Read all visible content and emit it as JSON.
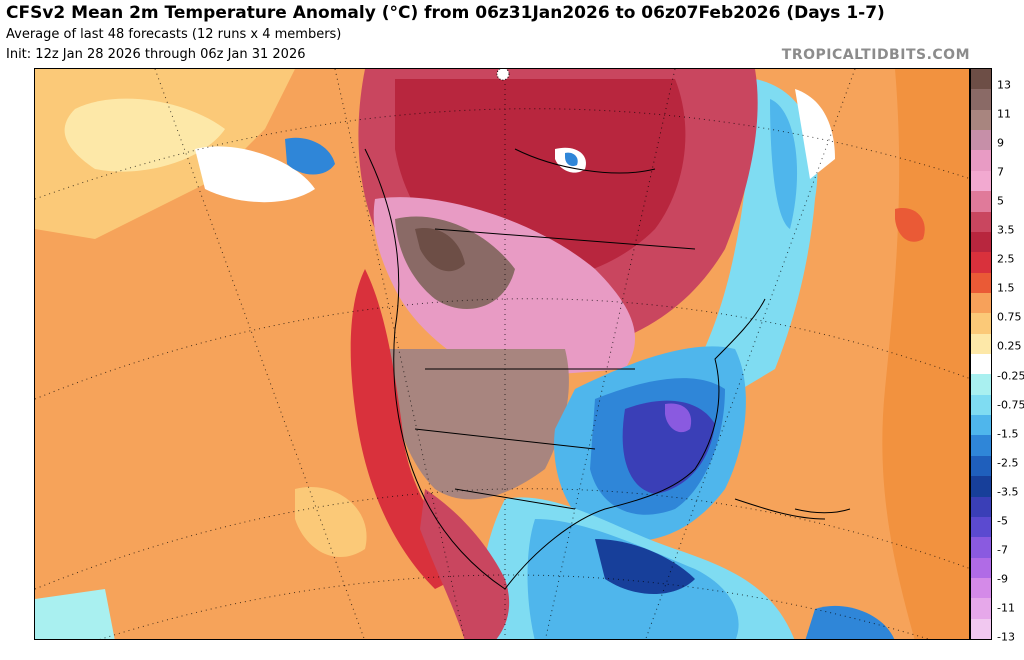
{
  "header": {
    "title": "CFSv2 Mean 2m Temperature Anomaly (°C) from 06z31Jan2026 to 06z07Feb2026 (Days 1-7)",
    "subtitle_1": "Average of last 48 forecasts (12 runs x 4 members)",
    "subtitle_2": "Init: 12z Jan 28 2026 through 06z Jan 31 2026",
    "brand": "TROPICALTIDBITS.COM"
  },
  "colorbar": {
    "labels": [
      "13",
      "11",
      "9",
      "7",
      "5",
      "3.5",
      "2.5",
      "1.5",
      "0.75",
      "0.25",
      "-0.25",
      "-0.75",
      "-1.5",
      "-2.5",
      "-3.5",
      "-5",
      "-7",
      "-9",
      "-11",
      "-13"
    ],
    "colors": [
      "#6d4e46",
      "#8a6a66",
      "#a8857f",
      "#c68fa8",
      "#e89bc4",
      "#f2a9d0",
      "#e07a9a",
      "#c9465f",
      "#b8263e",
      "#d9313c",
      "#ea5a36",
      "#f7a15a",
      "#fbc978",
      "#fde8a8",
      "#ffffff",
      "#a9f0f0",
      "#7fdcf2",
      "#4fb6ec",
      "#2f86d8",
      "#1f5fbc",
      "#173f9a",
      "#3a3fb7",
      "#5b4ad0",
      "#8a5ae0",
      "#b06be6",
      "#d48ae8",
      "#e6a8ea",
      "#f1c8f0"
    ]
  },
  "map": {
    "description_colors": {
      "ocean_warm": "#f6a35a",
      "ocean_mild": "#fbc978",
      "land_hot": "#c9465f",
      "land_very_hot": "#8a6a66",
      "cold": "#2f86d8",
      "very_cold": "#5b4ad0",
      "neutral": "#ffffff"
    }
  }
}
